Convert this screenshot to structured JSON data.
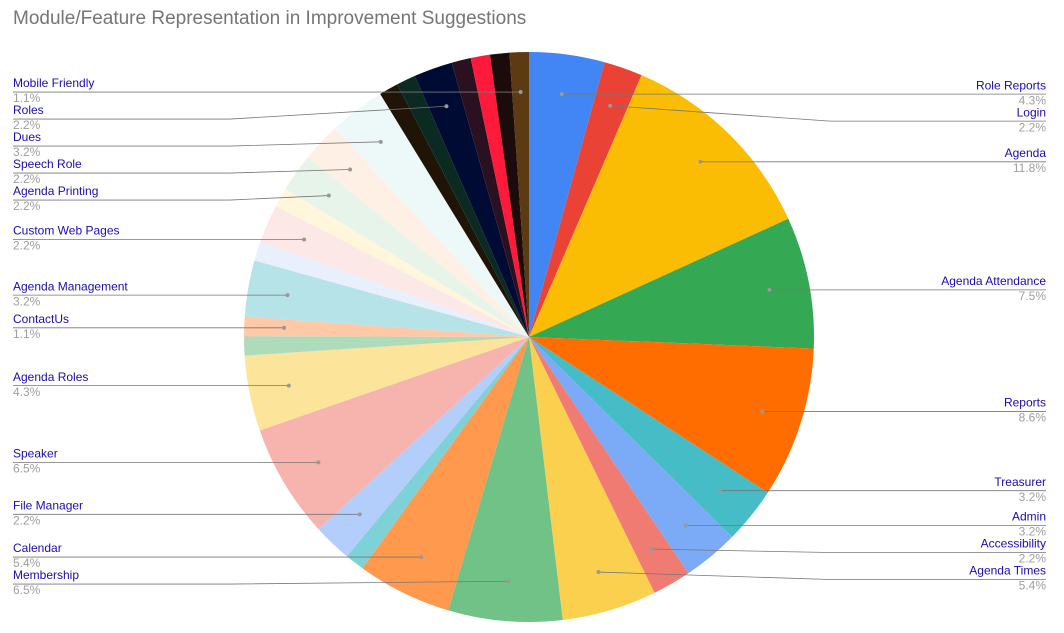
{
  "chart_data": {
    "type": "pie",
    "title": "Module/Feature Representation in Improvement Suggestions",
    "categories": [
      "Role Reports",
      "Login",
      "Agenda",
      "Agenda Attendance",
      "Reports",
      "Treasurer",
      "Admin",
      "Accessibility",
      "Agenda Times",
      "Membership",
      "Calendar",
      null,
      "File Manager",
      "Speaker",
      "Agenda Roles",
      null,
      "ContactUs",
      "Agenda Management",
      null,
      "Custom Web Pages",
      null,
      "Agenda Printing",
      "Speech Role",
      "Dues",
      null,
      null,
      "Roles",
      null,
      null,
      null,
      "Mobile Friendly"
    ],
    "values": [
      4.3,
      2.2,
      11.8,
      7.5,
      8.6,
      3.2,
      3.2,
      2.2,
      5.4,
      6.5,
      5.4,
      1.1,
      2.2,
      6.5,
      4.3,
      1.1,
      1.1,
      3.2,
      1.1,
      2.2,
      1.1,
      2.2,
      2.2,
      3.2,
      1.1,
      1.1,
      2.2,
      1.1,
      1.1,
      1.1,
      1.1
    ],
    "value_labels": [
      "4.3%",
      "2.2%",
      "11.8%",
      "7.5%",
      "8.6%",
      "3.2%",
      "3.2%",
      "2.2%",
      "5.4%",
      "6.5%",
      "5.4%",
      null,
      "2.2%",
      "6.5%",
      "4.3%",
      null,
      "1.1%",
      "3.2%",
      null,
      "2.2%",
      null,
      "2.2%",
      "2.2%",
      "3.2%",
      null,
      null,
      "2.2%",
      null,
      null,
      null,
      "1.1%"
    ],
    "colors": [
      "#4285f4",
      "#ea4335",
      "#fbbc04",
      "#34a853",
      "#ff6d01",
      "#46bdc6",
      "#7baaf7",
      "#f07b72",
      "#fcd04f",
      "#71c287",
      "#ff994d",
      "#7ed1d7",
      "#b3cefb",
      "#f7b4ae",
      "#fde49b",
      "#aedcba",
      "#ffc8a6",
      "#b5e3e8",
      "#e8effd",
      "#fce8e6",
      "#fff6dc",
      "#e6f4ea",
      "#fff0e6",
      "#edf8f9",
      "#1f1405",
      "#0b2a22",
      "#000b33",
      "#2b1020",
      "#ff1a3c",
      "#1c0b0b",
      "#5c3a12"
    ]
  }
}
